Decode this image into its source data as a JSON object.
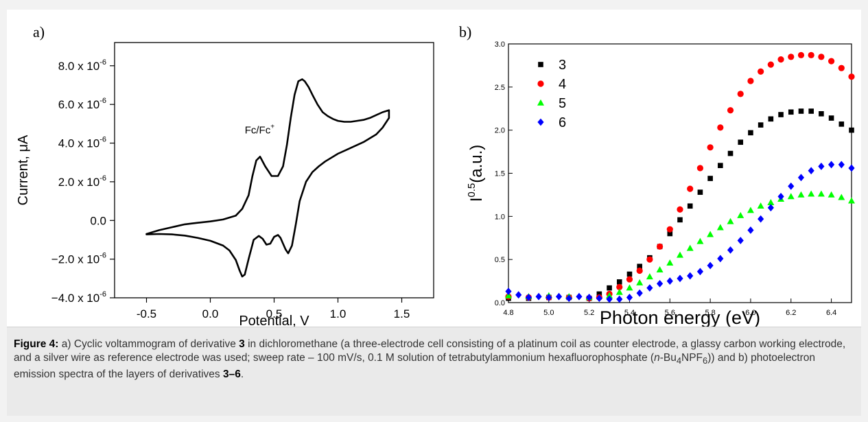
{
  "figure": {
    "caption_label": "Figure 4:",
    "caption_segments": [
      {
        "text": " a) Cyclic voltammogram of derivative ",
        "style": "normal"
      },
      {
        "text": "3",
        "style": "bold"
      },
      {
        "text": " in dichloromethane (a three-electrode cell consisting of a platinum coil as counter electrode, a glassy carbon working electrode, and a silver wire as reference electrode was used; sweep rate – 100 mV/s, 0.1 M solution of tetrabutylammonium hexafluorophosphate (",
        "style": "normal"
      },
      {
        "text": "n",
        "style": "italic"
      },
      {
        "text": "-Bu",
        "style": "normal"
      },
      {
        "text": "4",
        "style": "sub"
      },
      {
        "text": "NPF",
        "style": "normal"
      },
      {
        "text": "6",
        "style": "sub"
      },
      {
        "text": ")) and b) photoelectron emission spectra of the layers of derivatives ",
        "style": "normal"
      },
      {
        "text": "3–6",
        "style": "bold"
      },
      {
        "text": ".",
        "style": "normal"
      }
    ]
  },
  "chart_data": [
    {
      "type": "line",
      "panel_label": "a)",
      "xlabel": "Potential, V",
      "ylabel": "Current, μA",
      "xlim": [
        -0.75,
        1.75
      ],
      "ylim": [
        -4e-06,
        9.2e-06
      ],
      "x_ticks": [
        -0.5,
        0.0,
        0.5,
        1.0,
        1.5
      ],
      "x_tick_labels": [
        "-0.5",
        "0.0",
        "0.5",
        "1.0",
        "1.5"
      ],
      "y_ticks": [
        -4e-06,
        -2e-06,
        0.0,
        2e-06,
        4e-06,
        6e-06,
        8e-06
      ],
      "y_tick_labels": [
        {
          "mantissa": "−4.0 x 10",
          "exp": "-6"
        },
        {
          "mantissa": "−2.0 x 10",
          "exp": "-6"
        },
        {
          "mantissa": "0.0",
          "exp": ""
        },
        {
          "mantissa": "2.0 x 10",
          "exp": "-6"
        },
        {
          "mantissa": "4.0 x 10",
          "exp": "-6"
        },
        {
          "mantissa": "6.0 x 10",
          "exp": "-6"
        },
        {
          "mantissa": "8.0 x 10",
          "exp": "-6"
        }
      ],
      "annotation": {
        "text": "Fc/Fc",
        "sup": "+",
        "x": 0.27,
        "y": 4.5e-06
      },
      "grid": false,
      "series": [
        {
          "color": "#000000",
          "x": [
            -0.5,
            -0.4,
            -0.3,
            -0.2,
            -0.1,
            0.0,
            0.1,
            0.2,
            0.25,
            0.3,
            0.33,
            0.36,
            0.39,
            0.43,
            0.48,
            0.53,
            0.57,
            0.6,
            0.63,
            0.66,
            0.69,
            0.72,
            0.74,
            0.77,
            0.8,
            0.84,
            0.88,
            0.92,
            0.96,
            1.0,
            1.05,
            1.1,
            1.15,
            1.2,
            1.25,
            1.3,
            1.35,
            1.4,
            1.4,
            1.35,
            1.3,
            1.2,
            1.1,
            1.0,
            0.9,
            0.85,
            0.8,
            0.75,
            0.7,
            0.67,
            0.64,
            0.61,
            0.59,
            0.57,
            0.55,
            0.53,
            0.5,
            0.47,
            0.44,
            0.41,
            0.38,
            0.34,
            0.3,
            0.27,
            0.25,
            0.23,
            0.2,
            0.15,
            0.1,
            0.0,
            -0.1,
            -0.2,
            -0.3,
            -0.4,
            -0.5
          ],
          "y": [
            -7e-07,
            -5e-07,
            -3.5e-07,
            -2e-07,
            -1.2e-07,
            -5e-08,
            5e-08,
            2.5e-07,
            6e-07,
            1.3e-06,
            2.3e-06,
            3.1e-06,
            3.3e-06,
            2.8e-06,
            2.3e-06,
            2.3e-06,
            2.8e-06,
            3.9e-06,
            5.3e-06,
            6.5e-06,
            7.2e-06,
            7.3e-06,
            7.2e-06,
            6.9e-06,
            6.5e-06,
            6e-06,
            5.6e-06,
            5.4e-06,
            5.25e-06,
            5.15e-06,
            5.1e-06,
            5.1e-06,
            5.15e-06,
            5.2e-06,
            5.3e-06,
            5.45e-06,
            5.6e-06,
            5.7e-06,
            5.3e-06,
            4.8e-06,
            4.45e-06,
            4.05e-06,
            3.75e-06,
            3.45e-06,
            3.05e-06,
            2.8e-06,
            2.5e-06,
            2e-06,
            1e-06,
            -2e-07,
            -1.3e-06,
            -1.7e-06,
            -1.5e-06,
            -1.2e-06,
            -9e-07,
            -7.5e-07,
            -8.5e-07,
            -1.2e-06,
            -1.25e-06,
            -9.5e-07,
            -8e-07,
            -1e-06,
            -2e-06,
            -2.8e-06,
            -2.9e-06,
            -2.6e-06,
            -2.05e-06,
            -1.55e-06,
            -1.3e-06,
            -1.05e-06,
            -9e-07,
            -7.8e-07,
            -7.2e-07,
            -7e-07,
            -7.2e-07
          ]
        }
      ]
    },
    {
      "type": "scatter",
      "panel_label": "b)",
      "xlabel": "Photon energy (eV)",
      "ylabel": {
        "main": "I",
        "sup": "0.5",
        "rest": "(a.u.)"
      },
      "xlim": [
        4.8,
        6.5
      ],
      "ylim": [
        0.0,
        3.0
      ],
      "x_ticks": [
        4.8,
        5.0,
        5.2,
        5.4,
        5.6,
        5.8,
        6.0,
        6.2,
        6.4
      ],
      "x_tick_labels": [
        "4.8",
        "5.0",
        "5.2",
        "5.4",
        "5.6",
        "5.8",
        "6.0",
        "6.2",
        "6.4"
      ],
      "y_ticks": [
        0.0,
        0.5,
        1.0,
        1.5,
        2.0,
        2.5,
        3.0
      ],
      "y_tick_labels": [
        "0.0",
        "0.5",
        "1.0",
        "1.5",
        "2.0",
        "2.5",
        "3.0"
      ],
      "legend_position": "top-left",
      "grid": false,
      "series": [
        {
          "name": "3",
          "marker": "square",
          "color": "#000000",
          "x": [
            4.8,
            4.9,
            5.0,
            5.1,
            5.2,
            5.25,
            5.3,
            5.35,
            5.4,
            5.45,
            5.5,
            5.55,
            5.6,
            5.65,
            5.7,
            5.75,
            5.8,
            5.85,
            5.9,
            5.95,
            6.0,
            6.05,
            6.1,
            6.15,
            6.2,
            6.25,
            6.3,
            6.35,
            6.4,
            6.45,
            6.5
          ],
          "y": [
            0.05,
            0.05,
            0.06,
            0.06,
            0.05,
            0.1,
            0.17,
            0.24,
            0.33,
            0.42,
            0.52,
            0.65,
            0.8,
            0.96,
            1.12,
            1.28,
            1.44,
            1.59,
            1.73,
            1.86,
            1.97,
            2.06,
            2.13,
            2.18,
            2.21,
            2.22,
            2.22,
            2.19,
            2.14,
            2.07,
            2.0
          ]
        },
        {
          "name": "4",
          "marker": "circle",
          "color": "#ff0000",
          "x": [
            4.8,
            4.9,
            5.0,
            5.1,
            5.2,
            5.25,
            5.3,
            5.35,
            5.4,
            5.45,
            5.5,
            5.55,
            5.6,
            5.65,
            5.7,
            5.75,
            5.8,
            5.85,
            5.9,
            5.95,
            6.0,
            6.05,
            6.1,
            6.15,
            6.2,
            6.25,
            6.3,
            6.35,
            6.4,
            6.45,
            6.5
          ],
          "y": [
            0.07,
            0.06,
            0.06,
            0.06,
            0.05,
            0.06,
            0.1,
            0.18,
            0.27,
            0.37,
            0.5,
            0.65,
            0.85,
            1.08,
            1.32,
            1.56,
            1.8,
            2.03,
            2.23,
            2.42,
            2.57,
            2.68,
            2.76,
            2.82,
            2.85,
            2.87,
            2.87,
            2.85,
            2.8,
            2.72,
            2.62
          ]
        },
        {
          "name": "5",
          "marker": "triangle",
          "color": "#00ff00",
          "x": [
            4.8,
            4.9,
            5.0,
            5.1,
            5.2,
            5.3,
            5.35,
            5.4,
            5.45,
            5.5,
            5.55,
            5.6,
            5.65,
            5.7,
            5.75,
            5.8,
            5.85,
            5.9,
            5.95,
            6.0,
            6.05,
            6.1,
            6.15,
            6.2,
            6.25,
            6.3,
            6.35,
            6.4,
            6.45,
            6.5
          ],
          "y": [
            0.08,
            0.07,
            0.08,
            0.07,
            0.06,
            0.08,
            0.12,
            0.17,
            0.23,
            0.3,
            0.38,
            0.46,
            0.55,
            0.63,
            0.71,
            0.79,
            0.87,
            0.94,
            1.01,
            1.07,
            1.12,
            1.16,
            1.2,
            1.23,
            1.25,
            1.26,
            1.26,
            1.25,
            1.22,
            1.18
          ]
        },
        {
          "name": "6",
          "marker": "diamond",
          "color": "#0000ff",
          "x": [
            4.8,
            4.85,
            4.9,
            4.95,
            5.0,
            5.05,
            5.1,
            5.15,
            5.2,
            5.25,
            5.3,
            5.35,
            5.4,
            5.45,
            5.5,
            5.55,
            5.6,
            5.65,
            5.7,
            5.75,
            5.8,
            5.85,
            5.9,
            5.95,
            6.0,
            6.05,
            6.1,
            6.15,
            6.2,
            6.25,
            6.3,
            6.35,
            6.4,
            6.45,
            6.5
          ],
          "y": [
            0.13,
            0.09,
            0.06,
            0.07,
            0.06,
            0.07,
            0.05,
            0.07,
            0.06,
            0.05,
            0.04,
            0.04,
            0.06,
            0.11,
            0.17,
            0.22,
            0.25,
            0.28,
            0.31,
            0.36,
            0.43,
            0.51,
            0.61,
            0.72,
            0.84,
            0.97,
            1.1,
            1.23,
            1.35,
            1.45,
            1.53,
            1.58,
            1.6,
            1.6,
            1.56
          ]
        }
      ]
    }
  ]
}
